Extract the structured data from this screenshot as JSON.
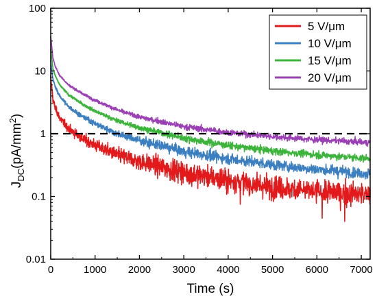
{
  "chart_data": {
    "type": "line",
    "xlabel": "Time (s)",
    "ylabel_main": "J",
    "ylabel_sub": "DC",
    "ylabel_unit": "(pA/mm",
    "ylabel_sup": "2",
    "ylabel_close": ")",
    "x_range": [
      0,
      7200
    ],
    "y_range": [
      0.01,
      100
    ],
    "y_scale": "log",
    "x_ticks": [
      0,
      1000,
      2000,
      3000,
      4000,
      5000,
      6000,
      7000
    ],
    "x_tick_labels": [
      "0",
      "1000",
      "2000",
      "3000",
      "4000",
      "5000",
      "6000",
      "7000"
    ],
    "y_ticks": [
      0.01,
      0.1,
      1,
      10,
      100
    ],
    "y_tick_labels": [
      "0.01",
      "0.1",
      "1",
      "10",
      "100"
    ],
    "reference_line": {
      "y": 1,
      "style": "dashed",
      "color": "#000000"
    },
    "legend_position": "top-right",
    "series": [
      {
        "name": "5 V/μm",
        "color": "#e31a1c",
        "x": [
          1,
          50,
          100,
          200,
          400,
          700,
          1000,
          1500,
          2000,
          3000,
          4000,
          5000,
          6000,
          7200
        ],
        "y": [
          8.0,
          3.5,
          2.6,
          1.8,
          1.2,
          0.85,
          0.65,
          0.46,
          0.36,
          0.24,
          0.18,
          0.14,
          0.12,
          0.105
        ]
      },
      {
        "name": "10 V/μm",
        "color": "#3c7fc1",
        "x": [
          1,
          50,
          100,
          200,
          400,
          700,
          1000,
          1500,
          2000,
          3000,
          4000,
          5000,
          6000,
          7200
        ],
        "y": [
          14,
          7.5,
          5.6,
          4.0,
          2.7,
          1.9,
          1.45,
          1.0,
          0.78,
          0.52,
          0.4,
          0.32,
          0.27,
          0.23
        ]
      },
      {
        "name": "15 V/μm",
        "color": "#3cb43c",
        "x": [
          1,
          50,
          100,
          200,
          400,
          700,
          1000,
          1500,
          2000,
          3000,
          4000,
          5000,
          6000,
          7200
        ],
        "y": [
          22,
          11,
          8.5,
          6.0,
          4.2,
          3.0,
          2.3,
          1.6,
          1.25,
          0.85,
          0.65,
          0.53,
          0.46,
          0.4
        ]
      },
      {
        "name": "20 V/μm",
        "color": "#9b3fb5",
        "x": [
          1,
          50,
          100,
          200,
          400,
          700,
          1000,
          1500,
          2000,
          3000,
          4000,
          5000,
          6000,
          7200
        ],
        "y": [
          35,
          16,
          12,
          8.5,
          6.0,
          4.4,
          3.4,
          2.4,
          1.85,
          1.3,
          1.05,
          0.9,
          0.8,
          0.72
        ]
      }
    ]
  }
}
